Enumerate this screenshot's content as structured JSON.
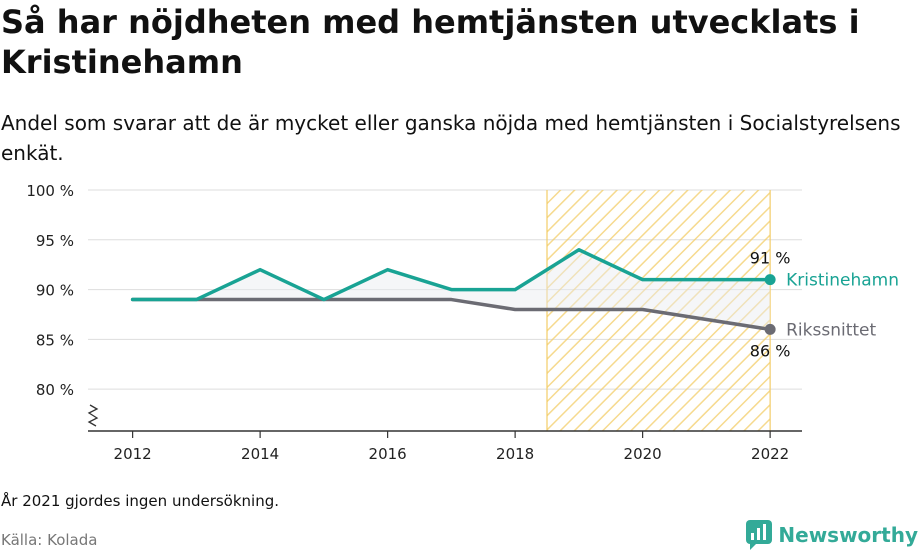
{
  "header": {
    "title": "Så har nöjdheten med hemtjänsten utvecklats i Kristinehamn",
    "subtitle": "Andel som svarar att de är mycket eller ganska nöjda med hemtjänsten i Socialstyrelsens enkät."
  },
  "footer": {
    "note": "År 2021 gjordes ingen undersökning.",
    "source": "Källa: Kolada",
    "brand": "Newsworthy"
  },
  "colors": {
    "kristinehamn": "#19a394",
    "riks": "#6b6b73",
    "highlight": "#f3cd68",
    "grid": "#dddddd",
    "brand": "#33aa98"
  },
  "chart_data": {
    "type": "line",
    "x": [
      2012,
      2013,
      2014,
      2015,
      2016,
      2017,
      2018,
      2019,
      2020,
      2022
    ],
    "xticks": [
      2012,
      2014,
      2016,
      2018,
      2020,
      2022
    ],
    "xtick_labels": [
      "2012",
      "2014",
      "2016",
      "2018",
      "2020",
      "2022"
    ],
    "yticks": [
      80,
      85,
      90,
      95,
      100
    ],
    "ytick_labels": [
      "80 %",
      "85 %",
      "90 %",
      "95 %",
      "100 %"
    ],
    "ylim": [
      75.8,
      100
    ],
    "xlim": [
      2011.3,
      2022.5
    ],
    "highlight_range": [
      2018.5,
      2022
    ],
    "axis_break": true,
    "grid": true,
    "series": [
      {
        "name": "Kristinehamn",
        "values": [
          89,
          89,
          92,
          89,
          92,
          90,
          90,
          94,
          91,
          91
        ],
        "end_label": "91 %"
      },
      {
        "name": "Rikssnittet",
        "values": [
          89,
          89,
          89,
          89,
          89,
          89,
          88,
          88,
          88,
          86
        ],
        "end_label": "86 %"
      }
    ]
  }
}
